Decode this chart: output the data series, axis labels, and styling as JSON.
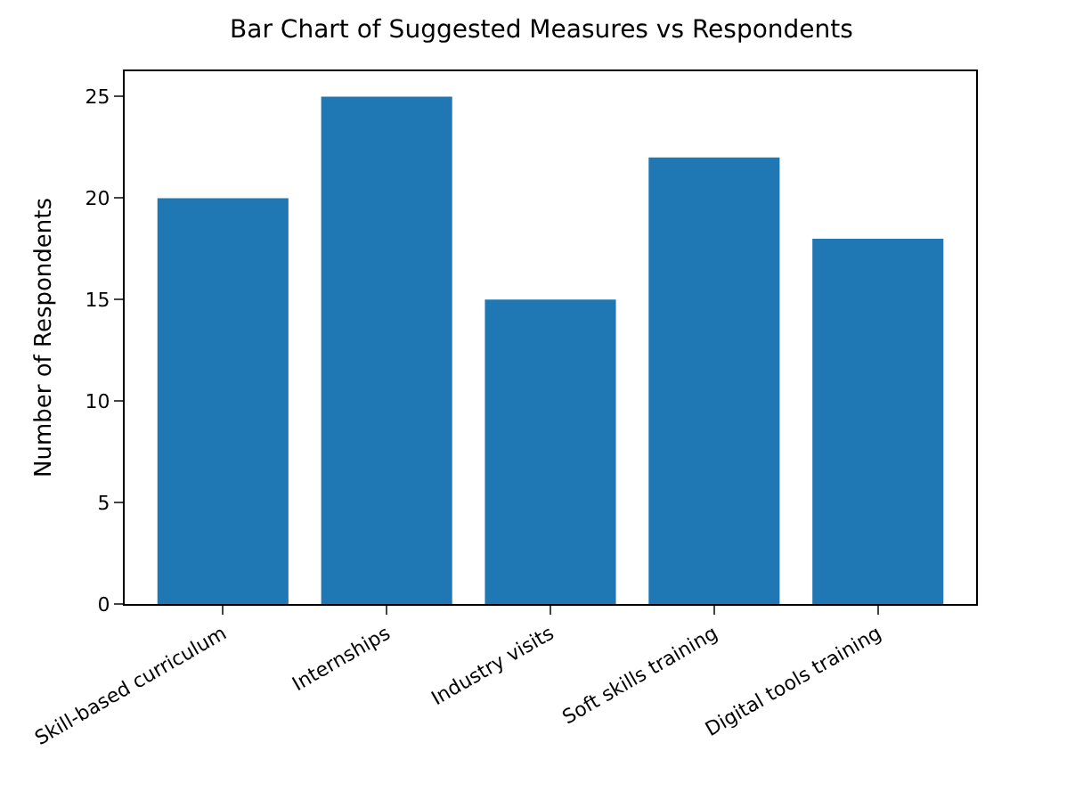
{
  "chart_data": {
    "type": "bar",
    "title": "Bar Chart of Suggested Measures vs Respondents",
    "ylabel": "Number of Respondents",
    "categories": [
      "Skill-based curriculum",
      "Internships",
      "Industry visits",
      "Soft skills training",
      "Digital tools training"
    ],
    "values": [
      20,
      25,
      15,
      22,
      18
    ],
    "color": "#1f77b4",
    "ylim": [
      0,
      26.25
    ],
    "yticks": [
      0,
      5,
      10,
      15,
      20,
      25
    ],
    "grid": false,
    "legend": false
  }
}
